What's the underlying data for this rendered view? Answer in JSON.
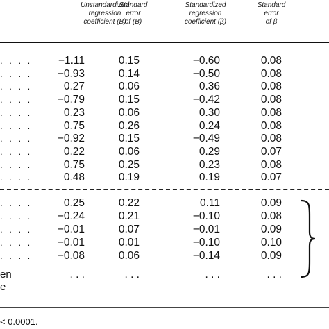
{
  "headers": [
    "Unstandardized regression coefficient (B)",
    "Standard error of (B)",
    "Standardized regression coefficient (β)",
    "Standard error of β"
  ],
  "header_lines": [
    [
      "Unstandardized",
      "regression",
      "coefficient (B)"
    ],
    [
      "Standard",
      "error",
      "of (B)"
    ],
    [
      "Standardized",
      "regression",
      "coefficient (β)"
    ],
    [
      "Standard",
      "error",
      "of β"
    ]
  ],
  "row_leader": ". . . .",
  "group1": [
    {
      "b": "−1.11",
      "se_b": "0.15",
      "beta": "−0.60",
      "se_beta": "0.08"
    },
    {
      "b": "−0.93",
      "se_b": "0.14",
      "beta": "−0.50",
      "se_beta": "0.08"
    },
    {
      "b": "0.27",
      "se_b": "0.06",
      "beta": "0.36",
      "se_beta": "0.08"
    },
    {
      "b": "−0.79",
      "se_b": "0.15",
      "beta": "−0.42",
      "se_beta": "0.08"
    },
    {
      "b": "0.23",
      "se_b": "0.06",
      "beta": "0.30",
      "se_beta": "0.08"
    },
    {
      "b": "0.75",
      "se_b": "0.26",
      "beta": "0.24",
      "se_beta": "0.08"
    },
    {
      "b": "−0.92",
      "se_b": "0.15",
      "beta": "−0.49",
      "se_beta": "0.08"
    },
    {
      "b": "0.22",
      "se_b": "0.06",
      "beta": "0.29",
      "se_beta": "0.07"
    },
    {
      "b": "0.75",
      "se_b": "0.25",
      "beta": "0.23",
      "se_beta": "0.08"
    },
    {
      "b": "0.48",
      "se_b": "0.19",
      "beta": "0.19",
      "se_beta": "0.07"
    }
  ],
  "group2": [
    {
      "b": "0.25",
      "se_b": "0.22",
      "beta": "0.11",
      "se_beta": "0.09"
    },
    {
      "b": "−0.24",
      "se_b": "0.21",
      "beta": "−0.10",
      "se_beta": "0.08"
    },
    {
      "b": "−0.01",
      "se_b": "0.07",
      "beta": "−0.01",
      "se_beta": "0.09"
    },
    {
      "b": "−0.01",
      "se_b": "0.01",
      "beta": "−0.10",
      "se_beta": "0.10"
    },
    {
      "b": "−0.08",
      "se_b": "0.06",
      "beta": "−0.14",
      "se_beta": "0.09"
    }
  ],
  "ellipsis_row": {
    "stub": "en",
    "b": ". . .",
    "se_b": ". . .",
    "beta": ". . .",
    "se_beta": ". . ."
  },
  "extra_stub": "e",
  "footnote": "< 0.0001."
}
